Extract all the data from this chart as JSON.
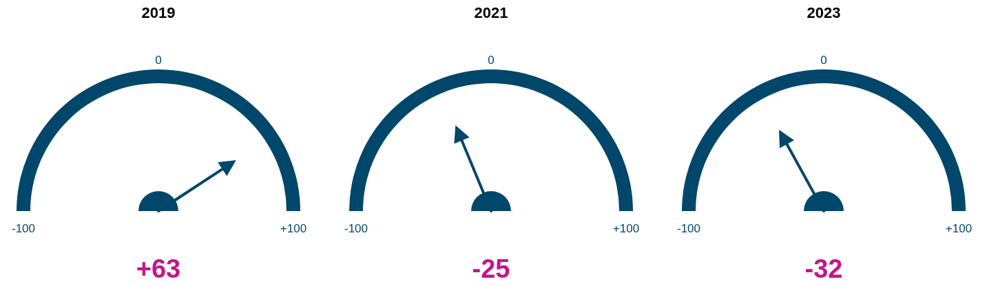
{
  "chart_data": [
    {
      "type": "other",
      "title": "2019",
      "values": [
        63
      ],
      "value_labels": [
        "+63"
      ],
      "annotations": [
        "-100",
        "0",
        "+100"
      ],
      "color": "#00476b"
    },
    {
      "type": "other",
      "title": "2021",
      "values": [
        -25
      ],
      "value_labels": [
        "-25"
      ],
      "annotations": [
        "-100",
        "0",
        "+100"
      ],
      "color": "#00476b"
    },
    {
      "type": "other",
      "title": "2023",
      "values": [
        -32
      ],
      "value_labels": [
        "-32"
      ],
      "annotations": [
        "-100",
        "0",
        "+100"
      ],
      "color": "#00476b"
    }
  ]
}
